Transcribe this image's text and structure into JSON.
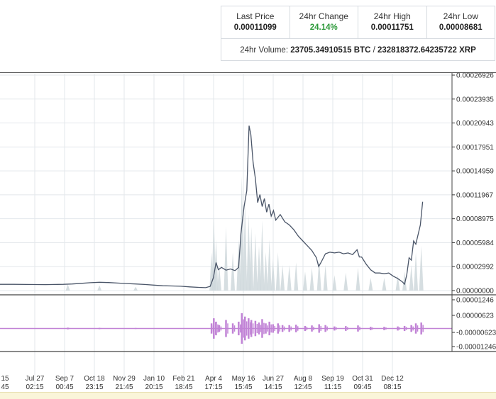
{
  "ticker": {
    "last_price_label": "Last Price",
    "last_price": "0.00011099",
    "change_label": "24hr Change",
    "change": "24.14%",
    "high_label": "24hr High",
    "high": "0.00011751",
    "low_label": "24hr Low",
    "low": "0.00008681",
    "volume_label": "24hr Volume:",
    "volume_btc": "23705.34910515 BTC",
    "volume_sep": " / ",
    "volume_xrp": "232818372.64235722 XRP"
  },
  "colors": {
    "price_line": "#4a5568",
    "volume_fill": "#cfd8dc",
    "oscillator": "#c183d6",
    "grid": "#e3e7eb",
    "change_up": "#2d9a3a"
  },
  "chart_data": [
    {
      "type": "line",
      "name": "price",
      "ylim": [
        0,
        0.00026926
      ],
      "y_ticks": [
        "0.00026926",
        "0.00023935",
        "0.00020943",
        "0.00017951",
        "0.00014959",
        "0.00011967",
        "0.00008975",
        "0.00005984",
        "0.00002992",
        "0.00000000"
      ],
      "x_tick_labels": [
        {
          "date": "15",
          "time": "45"
        },
        {
          "date": "Jul 27",
          "time": "02:15"
        },
        {
          "date": "Sep 7",
          "time": "00:45"
        },
        {
          "date": "Oct 18",
          "time": "23:15"
        },
        {
          "date": "Nov 29",
          "time": "21:45"
        },
        {
          "date": "Jan 10",
          "time": "20:15"
        },
        {
          "date": "Feb 21",
          "time": "18:45"
        },
        {
          "date": "Apr 4",
          "time": "17:15"
        },
        {
          "date": "May 16",
          "time": "15:45"
        },
        {
          "date": "Jun 27",
          "time": "14:15"
        },
        {
          "date": "Aug 8",
          "time": "12:45"
        },
        {
          "date": "Sep 19",
          "time": "11:15"
        },
        {
          "date": "Oct 31",
          "time": "09:45"
        },
        {
          "date": "Dec 12",
          "time": "08:15"
        }
      ],
      "x_range": [
        0,
        100
      ],
      "points": [
        [
          0,
          7.8e-06
        ],
        [
          3,
          7.8e-06
        ],
        [
          6,
          7.6e-06
        ],
        [
          10,
          7.4e-06
        ],
        [
          14,
          7.8e-06
        ],
        [
          16,
          8.2e-06
        ],
        [
          18,
          9e-06
        ],
        [
          20,
          9.8e-06
        ],
        [
          22,
          1.04e-05
        ],
        [
          24,
          1e-05
        ],
        [
          26,
          9.4e-06
        ],
        [
          28,
          8.8e-06
        ],
        [
          30,
          8.2e-06
        ],
        [
          32,
          7.6e-06
        ],
        [
          34,
          6.8e-06
        ],
        [
          36,
          6e-06
        ],
        [
          38,
          5.8e-06
        ],
        [
          40,
          5.4e-06
        ],
        [
          42,
          4.6e-06
        ],
        [
          44,
          4e-06
        ],
        [
          45.5,
          3.6e-06
        ],
        [
          46.5,
          5.2e-06
        ],
        [
          47.2,
          1.6e-05
        ],
        [
          47.8,
          3.5e-05
        ],
        [
          48.3,
          2.6e-05
        ],
        [
          49,
          2.9e-05
        ],
        [
          50,
          2.55e-05
        ],
        [
          51,
          2.7e-05
        ],
        [
          52,
          2.5e-05
        ],
        [
          52.8,
          2.9e-05
        ],
        [
          53.3,
          7.1e-05
        ],
        [
          54,
          0.000105
        ],
        [
          54.6,
          0.000125
        ],
        [
          55.1,
          0.000206
        ],
        [
          55.5,
          0.000195
        ],
        [
          56,
          0.00016
        ],
        [
          56.5,
          0.00014
        ],
        [
          57,
          0.00011
        ],
        [
          57.5,
          0.00012
        ],
        [
          58,
          0.000105
        ],
        [
          58.5,
          0.000115
        ],
        [
          59,
          9.8e-05
        ],
        [
          59.5,
          0.000108
        ],
        [
          60,
          9.3e-05
        ],
        [
          60.5,
          0.0001
        ],
        [
          61,
          8.8e-05
        ],
        [
          62,
          9.5e-05
        ],
        [
          63,
          8.6e-05
        ],
        [
          64,
          8.2e-05
        ],
        [
          65,
          7.6e-05
        ],
        [
          66,
          6.8e-05
        ],
        [
          67,
          6.2e-05
        ],
        [
          68,
          5.6e-05
        ],
        [
          69,
          5e-05
        ],
        [
          70,
          4.1e-05
        ],
        [
          70.5,
          3e-05
        ],
        [
          71,
          3.5e-05
        ],
        [
          72,
          4.6e-05
        ],
        [
          73,
          4.8e-05
        ],
        [
          74,
          4.7e-05
        ],
        [
          75,
          4.8e-05
        ],
        [
          76,
          4.6e-05
        ],
        [
          77,
          4.7e-05
        ],
        [
          78,
          4.5e-05
        ],
        [
          79,
          5.1e-05
        ],
        [
          79.5,
          4.2e-05
        ],
        [
          80,
          4.2e-05
        ],
        [
          81,
          3.3e-05
        ],
        [
          82,
          2.6e-05
        ],
        [
          83,
          2.2e-05
        ],
        [
          84,
          2.2e-05
        ],
        [
          85,
          2.1e-05
        ],
        [
          86,
          2.2e-05
        ],
        [
          87,
          1.8e-05
        ],
        [
          88,
          1.5e-05
        ],
        [
          89,
          1.1e-05
        ],
        [
          89.5,
          8e-06
        ],
        [
          90,
          2e-05
        ],
        [
          90.5,
          4.1e-05
        ],
        [
          91,
          3.8e-05
        ],
        [
          91.5,
          6.2e-05
        ],
        [
          92,
          5.8e-05
        ],
        [
          92.5,
          7e-05
        ],
        [
          93,
          8.2e-05
        ],
        [
          93.5,
          0.000111
        ]
      ],
      "volume": [
        [
          46.8,
          0.3
        ],
        [
          47.3,
          0.6
        ],
        [
          47.8,
          0.4
        ],
        [
          48.5,
          0.2
        ],
        [
          50.0,
          0.5
        ],
        [
          51.5,
          0.3
        ],
        [
          52.8,
          0.4
        ],
        [
          53.5,
          0.9
        ],
        [
          54.2,
          0.7
        ],
        [
          55.0,
          0.6
        ],
        [
          55.6,
          0.5
        ],
        [
          56.5,
          0.45
        ],
        [
          57.3,
          0.35
        ],
        [
          58.0,
          0.55
        ],
        [
          58.8,
          0.3
        ],
        [
          59.6,
          0.4
        ],
        [
          60.4,
          0.25
        ],
        [
          61.5,
          0.3
        ],
        [
          62.5,
          0.2
        ],
        [
          64.0,
          0.2
        ],
        [
          65.5,
          0.22
        ],
        [
          67.5,
          0.15
        ],
        [
          69.0,
          0.18
        ],
        [
          70.6,
          0.25
        ],
        [
          72.0,
          0.2
        ],
        [
          74.0,
          0.12
        ],
        [
          76.5,
          0.14
        ],
        [
          79.2,
          0.18
        ],
        [
          82.0,
          0.1
        ],
        [
          85.0,
          0.1
        ],
        [
          88.0,
          0.12
        ],
        [
          89.5,
          0.15
        ],
        [
          91.0,
          0.2
        ],
        [
          92.0,
          0.3
        ],
        [
          93.2,
          0.35
        ],
        [
          15.0,
          0.05
        ],
        [
          22.0,
          0.04
        ],
        [
          30.0,
          0.03
        ]
      ]
    },
    {
      "type": "line",
      "name": "oscillator",
      "ylim": [
        -1.246e-05,
        1.246e-05
      ],
      "y_ticks": [
        "0.00001246",
        "0.00000623",
        "-0.00000623",
        "-0.00001246"
      ]
    }
  ]
}
